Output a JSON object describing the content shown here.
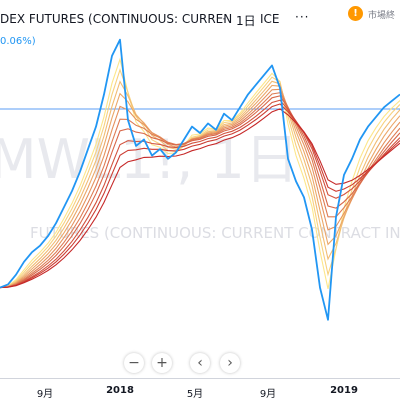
{
  "header": {
    "title": "DEX FUTURES (CONTINUOUS: CURREN",
    "separator": "·",
    "interval": "1日",
    "exchange": "ICE",
    "more": "···",
    "percent_change": "0.06%)",
    "status_icon": "!",
    "status_text": "市場終"
  },
  "watermark": {
    "symbol": "MWL1!, 1日",
    "description": "FUTURES (CONTINUOUS: CURRENT CONTRACT IN F"
  },
  "zoom_controls": {
    "zoom_out": "−",
    "zoom_in": "+",
    "scroll_left": "‹",
    "scroll_right": "›"
  },
  "x_axis": {
    "labels": [
      {
        "text": "9月",
        "bold": false
      },
      {
        "text": "2018",
        "bold": true
      },
      {
        "text": "5月",
        "bold": false
      },
      {
        "text": "9月",
        "bold": false
      },
      {
        "text": "2019",
        "bold": true
      }
    ]
  },
  "colors": {
    "price_line": "#2196f3",
    "ribbon_fast": "#fde68a",
    "ribbon_slow": "#c62828",
    "crosshair": "#5b9cf6"
  },
  "chart_data": {
    "type": "line",
    "xlabel": "",
    "ylabel": "",
    "x": [
      0,
      2,
      4,
      6,
      8,
      10,
      12,
      14,
      16,
      18,
      20,
      22,
      24,
      26,
      28,
      30,
      32,
      34,
      36,
      38,
      40,
      42,
      44,
      46,
      48,
      50,
      52,
      54,
      56,
      58,
      60,
      62,
      64,
      66,
      68,
      70,
      72,
      74,
      76,
      78,
      80,
      82,
      84,
      86,
      88,
      90,
      92,
      94,
      96,
      98,
      100
    ],
    "series": [
      {
        "values": [
          20,
          21,
          24,
          28,
          31,
          33,
          36,
          40,
          45,
          50,
          56,
          63,
          70,
          80,
          92,
          97,
          72,
          64,
          66,
          61,
          63,
          60,
          62,
          66,
          70,
          68,
          71,
          69,
          74,
          72,
          76,
          80,
          83,
          86,
          89,
          82,
          60,
          53,
          48,
          38,
          20,
          10,
          42,
          55,
          60,
          66,
          70,
          73,
          76,
          78,
          80
        ]
      }
    ],
    "overlays": "moving-average ribbon (multiple MAs, yellow to red)"
  }
}
